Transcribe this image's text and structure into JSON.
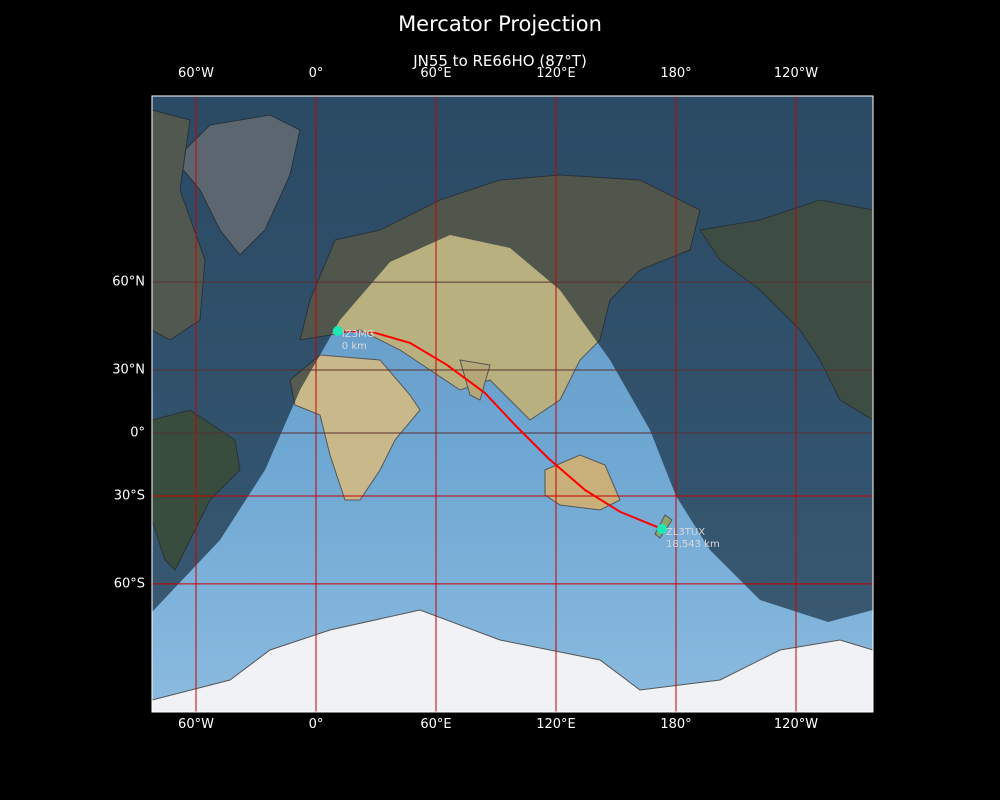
{
  "figure": {
    "title": "Mercator Projection",
    "subtitle": "JN55 to RE66HO (87°T)"
  },
  "axes": {
    "lon_ticks": [
      {
        "lon": -60,
        "label": "60°W"
      },
      {
        "lon": 0,
        "label": "0°"
      },
      {
        "lon": 60,
        "label": "60°E"
      },
      {
        "lon": 120,
        "label": "120°E"
      },
      {
        "lon": 180,
        "label": "180°"
      },
      {
        "lon": 240,
        "label": "120°W"
      }
    ],
    "lat_ticks": [
      {
        "lat": 60,
        "label": "60°N"
      },
      {
        "lat": 30,
        "label": "30°N"
      },
      {
        "lat": 0,
        "label": "0°"
      },
      {
        "lat": -30,
        "label": "30°S"
      },
      {
        "lat": -60,
        "label": "60°S"
      }
    ],
    "lon_range": [
      -82,
      198.5
    ],
    "grid_color": "#cc0000"
  },
  "path": {
    "color": "#ff0000",
    "points": [
      [
        10.9,
        45.4
      ],
      [
        29.5,
        44.7
      ],
      [
        47,
        41.0
      ],
      [
        65.5,
        32.2
      ],
      [
        84.5,
        19.6
      ],
      [
        99.5,
        4.0
      ],
      [
        116,
        -12.4
      ],
      [
        134.5,
        -27.4
      ],
      [
        152,
        -36.6
      ],
      [
        173,
        -43.2
      ]
    ]
  },
  "start": {
    "label": "IZ3MG",
    "distance": "0 km",
    "lon": 10.9,
    "lat": 45.4,
    "color": "#1de9b6"
  },
  "end": {
    "label": "ZL3TUX",
    "distance": "18,543 km",
    "lon": 173,
    "lat": -43.2,
    "color": "#1de9b6"
  },
  "colors": {
    "ocean": "#6fa8d0",
    "night_overlay": "#0a1a2a"
  }
}
